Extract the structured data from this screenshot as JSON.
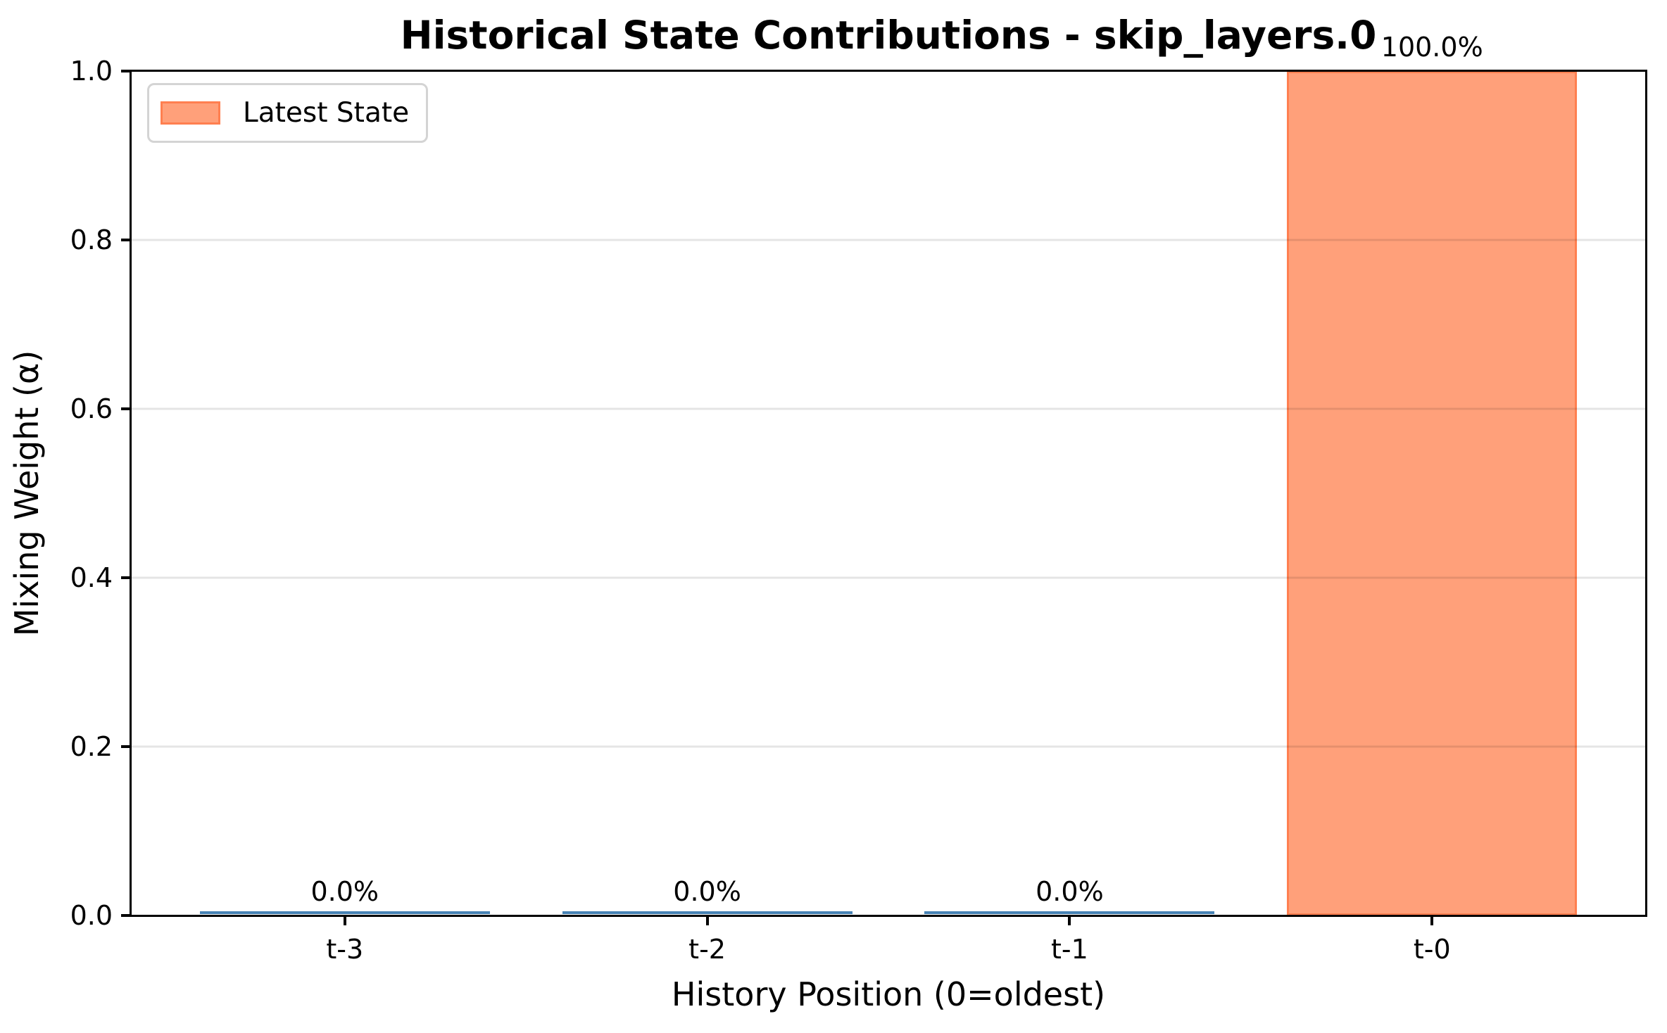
{
  "chart_data": {
    "type": "bar",
    "title": "Historical State Contributions - skip_layers.0",
    "xlabel": "History Position (0=oldest)",
    "ylabel": "Mixing Weight (α)",
    "categories": [
      "t-3",
      "t-2",
      "t-1",
      "t-0"
    ],
    "values": [
      0.0,
      0.0,
      0.0,
      1.0
    ],
    "bar_labels": [
      "0.0%",
      "0.0%",
      "0.0%",
      "100.0%"
    ],
    "latest_index": 3,
    "yticks": [
      0.0,
      0.2,
      0.4,
      0.6,
      0.8,
      1.0
    ],
    "ytick_labels": [
      "0.0",
      "0.2",
      "0.4",
      "0.6",
      "0.8",
      "1.0"
    ],
    "ylim": [
      0.0,
      1.0
    ],
    "xlim": [
      -0.59,
      3.59
    ],
    "bar_width": 0.8,
    "grid": "horizontal",
    "legend": {
      "label": "Latest State",
      "position": "upper-left"
    },
    "colors": {
      "latest_bar_fill": "#FFA07A",
      "latest_bar_edge": "#FF7F50",
      "history_bar": "#4682B4",
      "gridline": "#e6e6e6",
      "axis": "#000000",
      "legend_border": "#d4d4d4"
    }
  }
}
